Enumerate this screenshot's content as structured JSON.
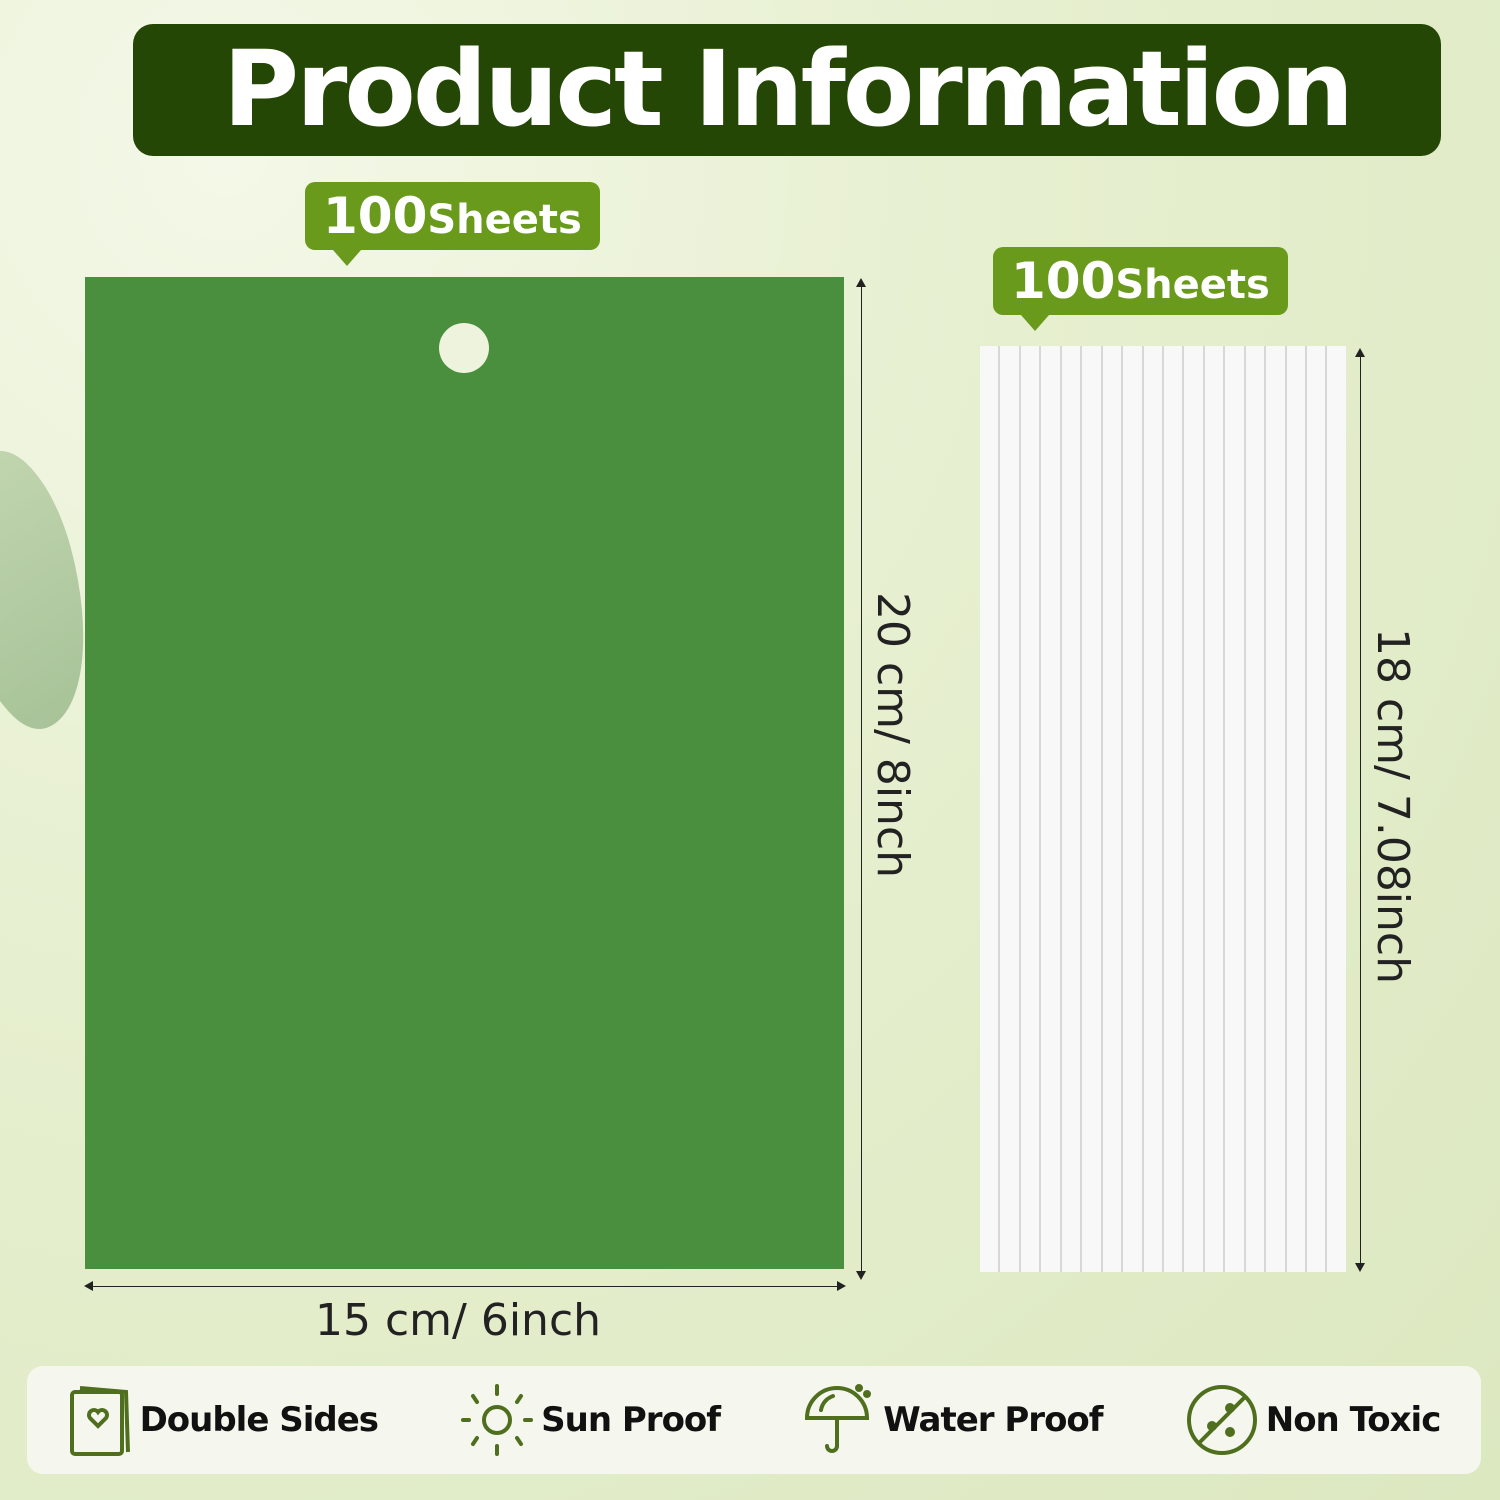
{
  "title": "Product Information",
  "badges": [
    {
      "count": "100",
      "unit": "Sheets"
    },
    {
      "count": "100",
      "unit": "Sheets"
    }
  ],
  "green_card": {
    "height_label": "20 cm/ 8inch",
    "width_label": "15 cm/ 6inch",
    "color": "#4a8f3e"
  },
  "white_strips": {
    "height_label": "18 cm/ 7.08inch",
    "strip_count": 18
  },
  "features": [
    {
      "label": "Double Sides",
      "icon": "card-heart-icon"
    },
    {
      "label": "Sun Proof",
      "icon": "sun-icon"
    },
    {
      "label": "Water Proof",
      "icon": "umbrella-icon"
    },
    {
      "label": "Non Toxic",
      "icon": "non-toxic-icon"
    }
  ],
  "colors": {
    "title_bg": "#244706",
    "badge": "#6a9a1c",
    "icon": "#4f6f1e"
  }
}
